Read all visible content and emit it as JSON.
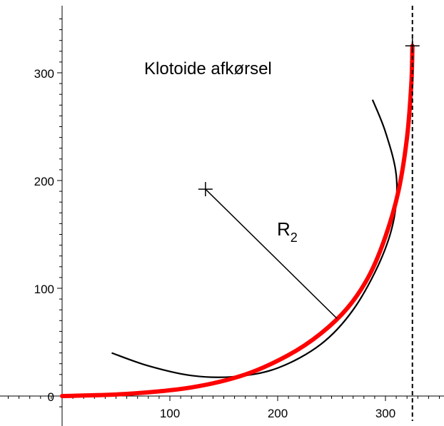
{
  "chart_data": {
    "type": "line",
    "title": "Klotoide afkørsel",
    "xlabel": "",
    "ylabel": "",
    "xlim": [
      0,
      345
    ],
    "ylim": [
      -15,
      360
    ],
    "x_ticks": [
      100,
      200,
      300
    ],
    "y_ticks": [
      0,
      100,
      200,
      300
    ],
    "grid": false,
    "annotations": {
      "radius_label": "R",
      "radius_subscript": "2",
      "center_point": {
        "x": 133,
        "y": 192
      },
      "end_point": {
        "x": 325,
        "y": 325
      },
      "dashed_vertical_x": 325
    },
    "series": [
      {
        "color": "#ff0000",
        "x": [
          0,
          60,
          120,
          170,
          210,
          240,
          265,
          285,
          300,
          312,
          320,
          324,
          325
        ],
        "y": [
          0,
          2,
          8,
          20,
          38,
          58,
          82,
          112,
          148,
          190,
          240,
          290,
          325
        ]
      },
      {
        "color": "#000000",
        "x": [
          46,
          80,
          120,
          160,
          200,
          240,
          270,
          295,
          308,
          310,
          300,
          288
        ],
        "y": [
          40,
          28,
          19,
          18,
          26,
          48,
          80,
          125,
          165,
          205,
          245,
          275
        ]
      }
    ]
  }
}
